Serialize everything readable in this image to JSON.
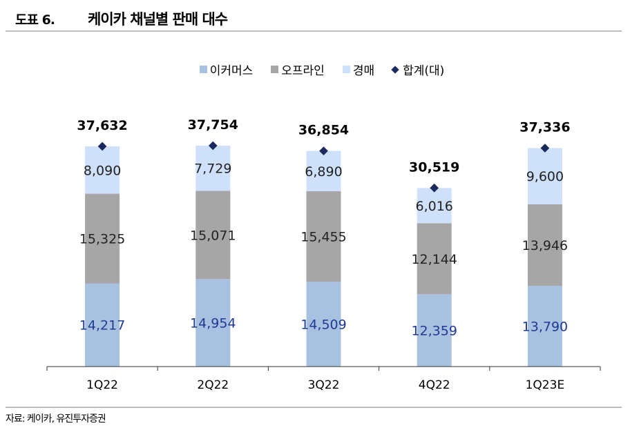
{
  "header": {
    "figure_label": "도표 6.",
    "title": "케이카 채널별 판매 대수"
  },
  "source": "자료: 케이카, 유진투자증권",
  "chart_data": {
    "type": "bar",
    "stacked": true,
    "title": "케이카 채널별 판매 대수",
    "categories": [
      "1Q22",
      "2Q22",
      "3Q22",
      "4Q22",
      "1Q23E"
    ],
    "series": [
      {
        "name": "이커머스",
        "values": [
          14217,
          14954,
          14509,
          12359,
          13790
        ],
        "color": "#a9c1e1",
        "label_color": "#1f3a93"
      },
      {
        "name": "오프라인",
        "values": [
          15325,
          15071,
          15455,
          12144,
          13946
        ],
        "color": "#a6a6a6",
        "label_color": "#222222"
      },
      {
        "name": "경매",
        "values": [
          8090,
          7729,
          6890,
          6016,
          9600
        ],
        "color": "#cfe0fb",
        "label_color": "#222222"
      }
    ],
    "total": {
      "name": "합계(대)",
      "values": [
        37632,
        37754,
        36854,
        30519,
        37336
      ],
      "color": "#1b2a5e"
    },
    "ylim": [
      0,
      40000
    ],
    "legend": "top",
    "grid": false
  }
}
